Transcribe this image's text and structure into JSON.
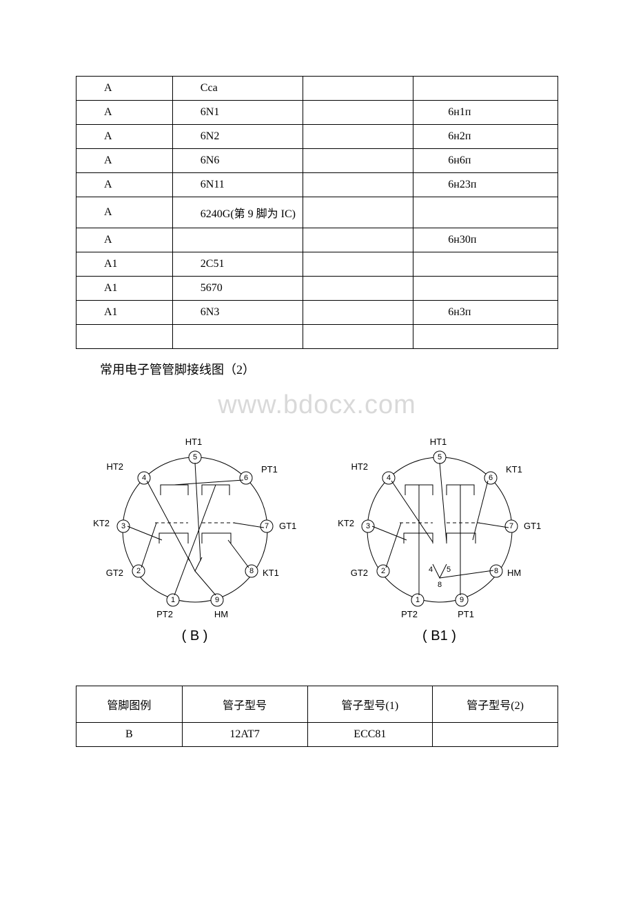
{
  "table1": {
    "rows": [
      {
        "c1": "A",
        "c2": "Cca",
        "c3": "",
        "c4": ""
      },
      {
        "c1": "A",
        "c2": "6N1",
        "c3": "",
        "c4": "6н1п"
      },
      {
        "c1": "A",
        "c2": "6N2",
        "c3": "",
        "c4": "6н2п"
      },
      {
        "c1": "A",
        "c2": "6N6",
        "c3": "",
        "c4": "6н6п"
      },
      {
        "c1": "A",
        "c2": "6N11",
        "c3": "",
        "c4": "6н23п"
      },
      {
        "c1": "A",
        "c2": "6240G(第 9 脚为 IC)",
        "c3": "",
        "c4": "",
        "wrap": true
      },
      {
        "c1": "A",
        "c2": "",
        "c3": "",
        "c4": "6н30п"
      },
      {
        "c1": "A1",
        "c2": "2C51",
        "c3": "",
        "c4": ""
      },
      {
        "c1": "A1",
        "c2": "5670",
        "c3": "",
        "c4": ""
      },
      {
        "c1": "A1",
        "c2": "6N3",
        "c3": "",
        "c4": "6н3п"
      },
      {
        "c1": "",
        "c2": "",
        "c3": "",
        "c4": ""
      }
    ]
  },
  "sectionTitle": "常用电子管管脚接线图（2）",
  "watermark": "www.bdocx.com",
  "diagramB": {
    "caption": "( B )",
    "pins": {
      "p1": {
        "num": "1",
        "label": "PT2"
      },
      "p2": {
        "num": "2",
        "label": "GT2"
      },
      "p3": {
        "num": "3",
        "label": "KT2"
      },
      "p4": {
        "num": "4",
        "label": "HT2"
      },
      "p5": {
        "num": "5",
        "label": "HT1"
      },
      "p6": {
        "num": "6",
        "label": "PT1"
      },
      "p7": {
        "num": "7",
        "label": "GT1"
      },
      "p8": {
        "num": "8",
        "label": "KT1"
      },
      "p9": {
        "num": "9",
        "label": "HM"
      }
    }
  },
  "diagramB1": {
    "caption": "( B1 )",
    "pins": {
      "p1": {
        "num": "1",
        "label": "PT2"
      },
      "p2": {
        "num": "2",
        "label": "GT2"
      },
      "p3": {
        "num": "3",
        "label": "KT2"
      },
      "p4": {
        "num": "4",
        "label": "HT2"
      },
      "p5": {
        "num": "5",
        "label": "HT1"
      },
      "p6": {
        "num": "6",
        "label": "KT1"
      },
      "p7": {
        "num": "7",
        "label": "GT1"
      },
      "p8": {
        "num": "8",
        "label": "HM"
      },
      "p9": {
        "num": "9",
        "label": "PT1"
      }
    },
    "inner": {
      "l": "4",
      "r": "5",
      "b": "8"
    }
  },
  "table2": {
    "header": {
      "c1": "管脚图例",
      "c2": "管子型号",
      "c3": "管子型号(1)",
      "c4": "管子型号(2)"
    },
    "rows": [
      {
        "c1": "B",
        "c2": "12AT7",
        "c3": "ECC81",
        "c4": ""
      }
    ]
  }
}
